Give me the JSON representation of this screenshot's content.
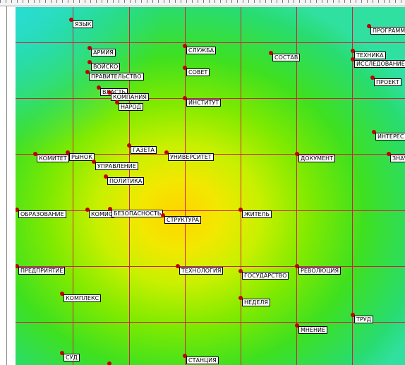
{
  "nodes": [
    {
      "label": "ЯЗЫК"
    },
    {
      "label": "ПРОГРАММ"
    },
    {
      "label": "АРМИЯ"
    },
    {
      "label": "СЛУЖБА"
    },
    {
      "label": "СОСТАВ"
    },
    {
      "label": "ТЕХНИКА"
    },
    {
      "label": "ИССЛЕДОВАНИЕ"
    },
    {
      "label": "ВОЙСКО"
    },
    {
      "label": "ПРАВИТЕЛЬСТВО"
    },
    {
      "label": "СОВЕТ"
    },
    {
      "label": "ПРОЕКТ"
    },
    {
      "label": "ВЛАСТЬ"
    },
    {
      "label": "КОМПАНИЯ"
    },
    {
      "label": "ИНСТИТУТ"
    },
    {
      "label": "НАРОД"
    },
    {
      "label": "ИНТЕРЕС"
    },
    {
      "label": "ГАЗЕТА"
    },
    {
      "label": "КОМИТЕТ"
    },
    {
      "label": "РЫНОК"
    },
    {
      "label": "УНИВЕРСИТЕТ"
    },
    {
      "label": "ДОКУМЕНТ"
    },
    {
      "label": "ЗНАЧ"
    },
    {
      "label": "УПРАВЛЕНИЕ"
    },
    {
      "label": "ПОЛИТИКА"
    },
    {
      "label": "ОБРАЗОВАНИЕ"
    },
    {
      "label": "КОМИС"
    },
    {
      "label": "БЕЗОПАСНОСТЬ"
    },
    {
      "label": "СТРУКТУРА"
    },
    {
      "label": "ЖИТЕЛЬ"
    },
    {
      "label": "ПРЕДПРИЯТИЕ"
    },
    {
      "label": "ТЕХНОЛОГИЯ"
    },
    {
      "label": "ГОСУДАРСТВО"
    },
    {
      "label": "РЕВОЛЮЦИЯ"
    },
    {
      "label": "КОМПЛЕКС"
    },
    {
      "label": "НЕДЕЛЯ"
    },
    {
      "label": "ТРУД"
    },
    {
      "label": "МНЕНИЕ"
    },
    {
      "label": "СУД"
    },
    {
      "label": "СТАНЦИЯ"
    }
  ]
}
